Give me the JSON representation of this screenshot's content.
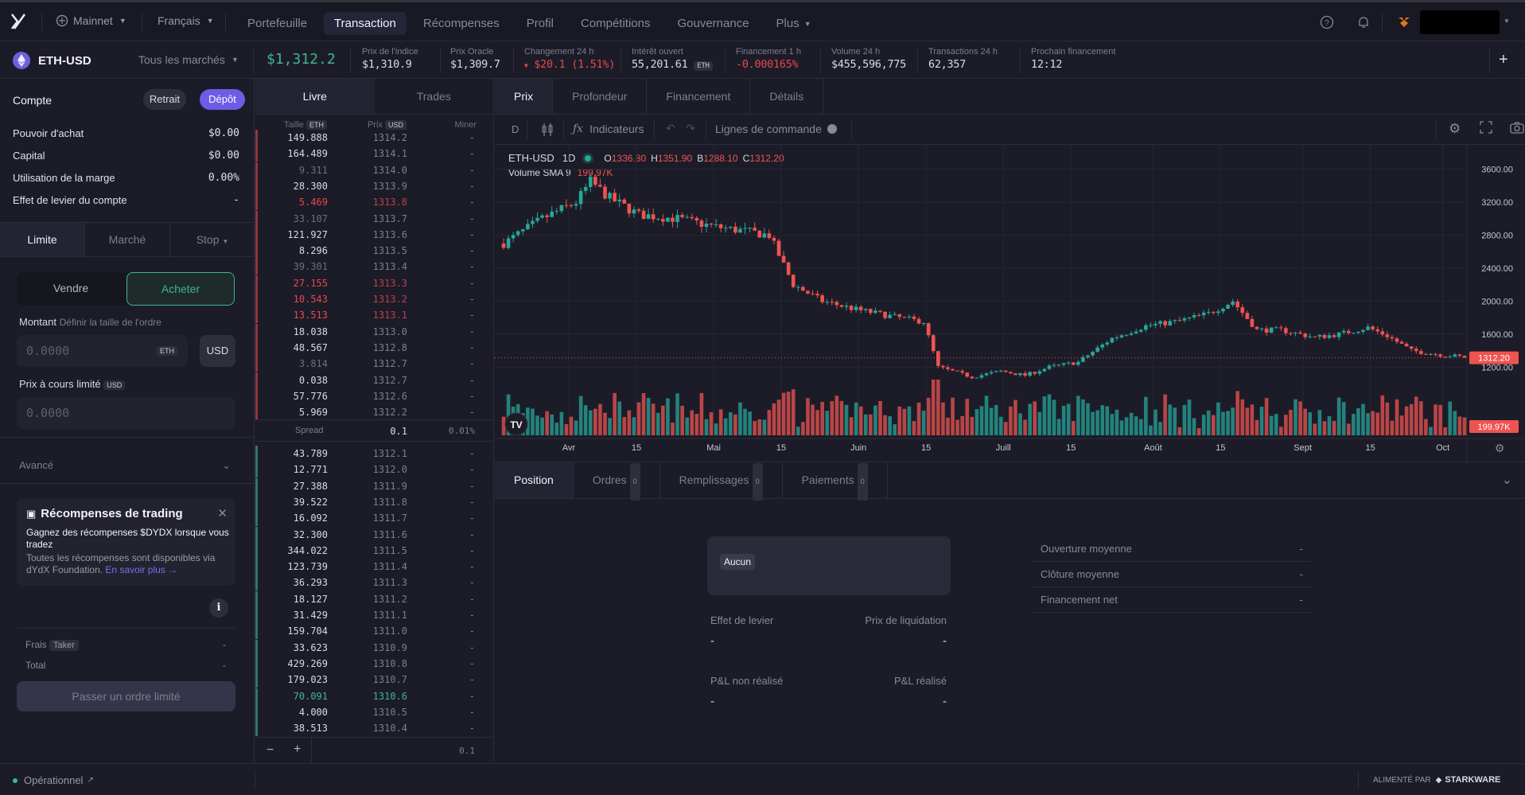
{
  "nav": {
    "network": "Mainnet",
    "language": "Français",
    "items": [
      {
        "label": "Portefeuille",
        "active": false
      },
      {
        "label": "Transaction",
        "active": true
      },
      {
        "label": "Récompenses",
        "active": false
      },
      {
        "label": "Profil",
        "active": false
      },
      {
        "label": "Compétitions",
        "active": false
      },
      {
        "label": "Gouvernance",
        "active": false
      },
      {
        "label": "Plus",
        "active": false
      }
    ]
  },
  "market": {
    "pair": "ETH-USD",
    "all_markets": "Tous les marchés",
    "price": "$1,312.2",
    "stats": [
      {
        "label": "Prix de l'indice",
        "value": "$1,310.9"
      },
      {
        "label": "Prix Oracle",
        "value": "$1,309.7"
      },
      {
        "label": "Changement 24 h",
        "value": "$20.1 (1.51%)"
      },
      {
        "label": "Intérêt ouvert",
        "value": "55,201.61",
        "tag": "ETH"
      },
      {
        "label": "Financement 1 h",
        "value": "-0.000165%"
      },
      {
        "label": "Volume 24 h",
        "value": "$455,596,775"
      },
      {
        "label": "Transactions 24 h",
        "value": "62,357"
      },
      {
        "label": "Prochain financement",
        "value": "12:12"
      }
    ]
  },
  "account": {
    "title": "Compte",
    "withdraw": "Retrait",
    "deposit": "Dépôt",
    "rows": [
      {
        "label": "Pouvoir d'achat",
        "value": "$0.00"
      },
      {
        "label": "Capital",
        "value": "$0.00"
      },
      {
        "label": "Utilisation de la marge",
        "value": "0.00%"
      },
      {
        "label": "Effet de levier du compte",
        "value": "-"
      }
    ]
  },
  "order": {
    "types": [
      "Limite",
      "Marché",
      "Stop"
    ],
    "sell": "Vendre",
    "buy": "Acheter",
    "amount_label": "Montant",
    "amount_hint": "Définir la taille de l'ordre",
    "amount_placeholder": "0.0000",
    "amount_unit": "ETH",
    "usd_toggle": "USD",
    "limit_label": "Prix à cours limité",
    "limit_unit": "USD",
    "limit_placeholder": "0.0000",
    "advanced": "Avancé",
    "fees_label": "Frais",
    "fees_tag": "Taker",
    "fees_value": "-",
    "total_label": "Total",
    "total_value": "-",
    "submit": "Passer un ordre limité"
  },
  "rewards": {
    "title": "Récompenses de trading",
    "line1": "Gagnez des récompenses $DYDX lorsque vous tradez",
    "line2": "Toutes les récompenses sont disponibles via dYdX Foundation.",
    "link": "En savoir plus →"
  },
  "book": {
    "tabs": [
      "Livre",
      "Trades"
    ],
    "col_size": "Taille",
    "col_size_unit": "ETH",
    "col_price": "Prix",
    "col_price_unit": "USD",
    "col_mine": "Miner",
    "asks": [
      {
        "size": "149.888",
        "price": "1314.2",
        "color": "#dadae3"
      },
      {
        "size": "164.489",
        "price": "1314.1",
        "color": "#dadae3"
      },
      {
        "size": "9.311",
        "price": "1314.0",
        "color": "#6e6e7c"
      },
      {
        "size": "28.300",
        "price": "1313.9",
        "color": "#dadae3"
      },
      {
        "size": "5.469",
        "price": "1313.8",
        "color": "#e5484d"
      },
      {
        "size": "33.107",
        "price": "1313.7",
        "color": "#6e6e7c"
      },
      {
        "size": "121.927",
        "price": "1313.6",
        "color": "#dadae3"
      },
      {
        "size": "8.296",
        "price": "1313.5",
        "color": "#dadae3"
      },
      {
        "size": "39.301",
        "price": "1313.4",
        "color": "#6e6e7c"
      },
      {
        "size": "27.155",
        "price": "1313.3",
        "color": "#e5484d"
      },
      {
        "size": "10.543",
        "price": "1313.2",
        "color": "#e5484d"
      },
      {
        "size": "13.513",
        "price": "1313.1",
        "color": "#e5484d"
      },
      {
        "size": "18.038",
        "price": "1313.0",
        "color": "#dadae3"
      },
      {
        "size": "48.567",
        "price": "1312.8",
        "color": "#dadae3"
      },
      {
        "size": "3.814",
        "price": "1312.7",
        "color": "#6e6e7c"
      },
      {
        "size": "0.038",
        "price": "1312.7",
        "color": "#dadae3"
      },
      {
        "size": "57.776",
        "price": "1312.6",
        "color": "#dadae3"
      },
      {
        "size": "5.969",
        "price": "1312.2",
        "color": "#dadae3"
      }
    ],
    "spread_label": "Spread",
    "spread_value": "0.1",
    "spread_pct": "0.01%",
    "bids": [
      {
        "size": "43.789",
        "price": "1312.1",
        "color": "#dadae3"
      },
      {
        "size": "12.771",
        "price": "1312.0",
        "color": "#dadae3"
      },
      {
        "size": "27.388",
        "price": "1311.9",
        "color": "#dadae3"
      },
      {
        "size": "39.522",
        "price": "1311.8",
        "color": "#dadae3"
      },
      {
        "size": "16.092",
        "price": "1311.7",
        "color": "#dadae3"
      },
      {
        "size": "32.300",
        "price": "1311.6",
        "color": "#dadae3"
      },
      {
        "size": "344.022",
        "price": "1311.5",
        "color": "#dadae3"
      },
      {
        "size": "123.739",
        "price": "1311.4",
        "color": "#dadae3"
      },
      {
        "size": "36.293",
        "price": "1311.3",
        "color": "#dadae3"
      },
      {
        "size": "18.127",
        "price": "1311.2",
        "color": "#dadae3"
      },
      {
        "size": "31.429",
        "price": "1311.1",
        "color": "#dadae3"
      },
      {
        "size": "159.704",
        "price": "1311.0",
        "color": "#dadae3"
      },
      {
        "size": "33.623",
        "price": "1310.9",
        "color": "#dadae3"
      },
      {
        "size": "429.269",
        "price": "1310.8",
        "color": "#dadae3"
      },
      {
        "size": "179.023",
        "price": "1310.7",
        "color": "#dadae3"
      },
      {
        "size": "70.091",
        "price": "1310.6",
        "color": "#3fb68b"
      },
      {
        "size": "4.000",
        "price": "1310.5",
        "color": "#dadae3"
      },
      {
        "size": "38.513",
        "price": "1310.4",
        "color": "#dadae3"
      }
    ],
    "mine_value": "-",
    "group": "0.1"
  },
  "chart": {
    "tabs": [
      "Prix",
      "Profondeur",
      "Financement",
      "Détails"
    ],
    "interval": "D",
    "indicators": "Indicateurs",
    "order_lines": "Lignes de commande",
    "symbol": "ETH-USD",
    "tf": "1D",
    "ohlc": {
      "o_label": "O",
      "o": "1336.80",
      "h_label": "H",
      "h": "1351.90",
      "b_label": "B",
      "b": "1288.10",
      "c_label": "C",
      "c": "1312.20"
    },
    "volume_label": "Volume SMA 9",
    "volume_value": "199.97K",
    "last_price_label": "1312.20",
    "last_volume_label": "199.97K",
    "colors": {
      "up": "#26a69a",
      "down": "#ef5350",
      "grid": "#262633"
    }
  },
  "chart_data": {
    "type": "candlestick",
    "ylim": [
      1000,
      3800
    ],
    "y_ticks": [
      "3600.00",
      "3200.00",
      "2800.00",
      "2400.00",
      "2000.00",
      "1600.00",
      "1200.00"
    ],
    "y_tick_values": [
      3600,
      3200,
      2800,
      2400,
      2000,
      1600,
      1200
    ],
    "x_labels": [
      "Avr",
      "15",
      "Mai",
      "15",
      "Juin",
      "15",
      "Juill",
      "15",
      "Août",
      "15",
      "Sept",
      "15",
      "Oct"
    ],
    "x_label_days": [
      14,
      28,
      44,
      58,
      74,
      88,
      104,
      118,
      135,
      149,
      166,
      180,
      195
    ],
    "close_keypoints": [
      [
        0,
        2700
      ],
      [
        8,
        3000
      ],
      [
        15,
        3200
      ],
      [
        18,
        3450
      ],
      [
        22,
        3250
      ],
      [
        28,
        3050
      ],
      [
        36,
        3000
      ],
      [
        44,
        2900
      ],
      [
        50,
        2850
      ],
      [
        55,
        2800
      ],
      [
        60,
        2200
      ],
      [
        66,
        2000
      ],
      [
        73,
        1900
      ],
      [
        80,
        1820
      ],
      [
        87,
        1750
      ],
      [
        90,
        1200
      ],
      [
        97,
        1080
      ],
      [
        103,
        1150
      ],
      [
        108,
        1100
      ],
      [
        113,
        1200
      ],
      [
        119,
        1260
      ],
      [
        126,
        1550
      ],
      [
        133,
        1700
      ],
      [
        140,
        1760
      ],
      [
        146,
        1850
      ],
      [
        151,
        2000
      ],
      [
        156,
        1650
      ],
      [
        161,
        1650
      ],
      [
        168,
        1560
      ],
      [
        173,
        1600
      ],
      [
        179,
        1680
      ],
      [
        183,
        1580
      ],
      [
        188,
        1400
      ],
      [
        194,
        1350
      ],
      [
        199,
        1320
      ]
    ],
    "last_price": 1312.2,
    "last_volume": "199.97K",
    "series": [
      {
        "name": "ETH-USD",
        "type": "candles"
      },
      {
        "name": "Volume SMA 9",
        "type": "volume"
      }
    ]
  },
  "positions": {
    "tabs": [
      {
        "label": "Position",
        "count": ""
      },
      {
        "label": "Ordres",
        "count": "0"
      },
      {
        "label": "Remplissages",
        "count": "0"
      },
      {
        "label": "Paiements",
        "count": "0"
      }
    ],
    "none_tag": "Aucun",
    "leverage_label": "Effet de levier",
    "leverage_value": "-",
    "liq_label": "Prix de liquidation",
    "liq_value": "-",
    "unreal_label": "P&L non réalisé",
    "unreal_value": "-",
    "real_label": "P&L réalisé",
    "real_value": "-",
    "right_rows": [
      {
        "label": "Ouverture moyenne",
        "value": "-"
      },
      {
        "label": "Clôture moyenne",
        "value": "-"
      },
      {
        "label": "Financement net",
        "value": "-"
      }
    ]
  },
  "footer": {
    "status": "Opérationnel",
    "powered": "ALIMENTÉ PAR",
    "brand": "STARKWARE"
  }
}
